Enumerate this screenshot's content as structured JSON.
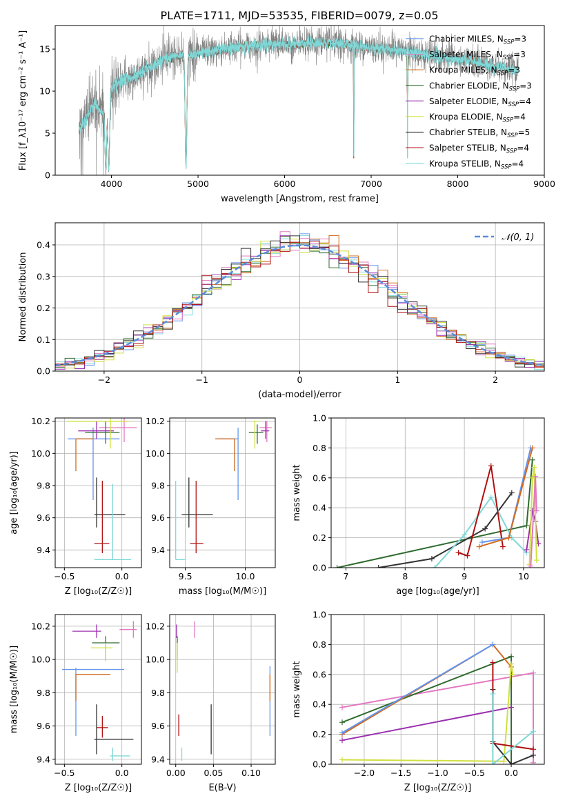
{
  "title": "PLATE=1711, MJD=53535, FIBERID=0079, z=0.05",
  "legend_models": [
    {
      "name": "Chabrier MILES",
      "nssp": "3",
      "color": "#6495ed"
    },
    {
      "name": "Salpeter MILES",
      "nssp": "3",
      "color": "#e377c2"
    },
    {
      "name": "Kroupa MILES",
      "nssp": "3",
      "color": "#d2691e"
    },
    {
      "name": "Chabrier ELODIE",
      "nssp": "3",
      "color": "#2e6b2e"
    },
    {
      "name": "Salpeter ELODIE",
      "nssp": "4",
      "color": "#9b30b0"
    },
    {
      "name": "Kroupa ELODIE",
      "nssp": "4",
      "color": "#d0e040"
    },
    {
      "name": "Chabrier STELIB",
      "nssp": "5",
      "color": "#333333"
    },
    {
      "name": "Salpeter STELIB",
      "nssp": "4",
      "color": "#b01010"
    },
    {
      "name": "Kroupa STELIB",
      "nssp": "4",
      "color": "#7fd8d8"
    }
  ],
  "chart_data": [
    {
      "type": "line",
      "panel": "spectrum",
      "xlabel": "wavelength [Angstrom, rest frame]",
      "ylabel": "Flux [f_λ10⁻¹⁷ erg cm⁻² s⁻¹ A⁻¹]",
      "xlim": [
        3350,
        9000
      ],
      "ylim": [
        0,
        17.8
      ],
      "xticks": [
        4000,
        5000,
        6000,
        7000,
        8000,
        9000
      ],
      "yticks": [
        0,
        5,
        10,
        15
      ],
      "data_color": "#808080",
      "model_color": "#7fd8d8",
      "x_start": 3625,
      "x_end": 8700,
      "continuum": [
        [
          3625,
          5.5
        ],
        [
          3700,
          6.5
        ],
        [
          3800,
          8.5
        ],
        [
          3900,
          7.5
        ],
        [
          3950,
          9.5
        ],
        [
          4000,
          10.5
        ],
        [
          4100,
          11.2
        ],
        [
          4200,
          11.5
        ],
        [
          4300,
          11.8
        ],
        [
          4400,
          12.6
        ],
        [
          4500,
          13.2
        ],
        [
          4600,
          13.8
        ],
        [
          4700,
          14.0
        ],
        [
          4800,
          14.3
        ],
        [
          4900,
          14.4
        ],
        [
          5000,
          14.5
        ],
        [
          5200,
          14.8
        ],
        [
          5400,
          15.2
        ],
        [
          5600,
          15.4
        ],
        [
          5800,
          15.6
        ],
        [
          6000,
          15.5
        ],
        [
          6200,
          15.6
        ],
        [
          6400,
          15.8
        ],
        [
          6600,
          15.6
        ],
        [
          6800,
          15.4
        ],
        [
          7000,
          15.2
        ],
        [
          7200,
          15.0
        ],
        [
          7400,
          14.8
        ],
        [
          7600,
          14.4
        ],
        [
          7800,
          14.0
        ],
        [
          8000,
          13.8
        ],
        [
          8200,
          13.5
        ],
        [
          8400,
          13.0
        ],
        [
          8600,
          12.6
        ],
        [
          8700,
          12.4
        ]
      ],
      "dips": [
        3934,
        3969,
        4861,
        6800,
        7420
      ]
    },
    {
      "type": "bar",
      "panel": "residual-histogram",
      "xlabel": "(data-model)/error",
      "ylabel": "Normed distribution",
      "xlim": [
        -2.5,
        2.5
      ],
      "ylim": [
        0,
        0.47
      ],
      "xticks": [
        -2,
        -1,
        0,
        1,
        2
      ],
      "yticks": [
        0,
        0.1,
        0.2,
        0.3,
        0.4
      ],
      "bin_width": 0.1,
      "reference_label": "𝒩(0, 1)",
      "reference_color": "#5b8bd9"
    },
    {
      "type": "scatter",
      "panel": "age-vs-Z",
      "xlabel": "Z [log₁₀(Z/Z☉)]",
      "ylabel": "age  [log₁₀(age/yr)]",
      "xlim": [
        -0.58,
        0.17
      ],
      "ylim": [
        9.29,
        10.22
      ],
      "xticks": [
        -0.5,
        0.0
      ],
      "xticklabels": [
        "−0.5",
        "0.0"
      ],
      "yticks": [
        9.4,
        9.6,
        9.8,
        10.0,
        10.2
      ],
      "points": [
        {
          "model": 0,
          "x": -0.25,
          "y": 10.09,
          "xlo": -0.47,
          "xhi": -0.02,
          "ylo": 9.71,
          "yhi": 10.16
        },
        {
          "model": 1,
          "x": 0.02,
          "y": 10.16,
          "xlo": -0.2,
          "xhi": 0.13,
          "ylo": 10.07,
          "yhi": 10.22
        },
        {
          "model": 2,
          "x": -0.4,
          "y": 10.09,
          "xlo": -0.4,
          "xhi": -0.25,
          "ylo": 9.89,
          "yhi": 10.09
        },
        {
          "model": 3,
          "x": -0.14,
          "y": 10.13,
          "xlo": -0.32,
          "xhi": -0.02,
          "ylo": 10.06,
          "yhi": 10.2
        },
        {
          "model": 4,
          "x": -0.22,
          "y": 10.14,
          "xlo": -0.38,
          "xhi": -0.07,
          "ylo": 10.09,
          "yhi": 10.2
        },
        {
          "model": 5,
          "x": -0.1,
          "y": 10.2,
          "xlo": -0.48,
          "xhi": 0.06,
          "ylo": 10.03,
          "yhi": 10.22
        },
        {
          "model": 6,
          "x": -0.22,
          "y": 9.62,
          "xlo": -0.24,
          "xhi": 0.03,
          "ylo": 9.54,
          "yhi": 9.85
        },
        {
          "model": 7,
          "x": -0.17,
          "y": 9.44,
          "xlo": -0.24,
          "xhi": -0.11,
          "ylo": 9.38,
          "yhi": 9.83
        },
        {
          "model": 8,
          "x": -0.08,
          "y": 9.34,
          "xlo": -0.24,
          "xhi": 0.08,
          "ylo": 9.34,
          "yhi": 9.81
        }
      ]
    },
    {
      "type": "scatter",
      "panel": "age-vs-mass",
      "xlabel": "mass [log₁₀(M/M☉)]",
      "ylabel": "",
      "xlim": [
        9.37,
        10.25
      ],
      "ylim": [
        9.29,
        10.22
      ],
      "xticks": [
        9.5,
        10.0
      ],
      "xticklabels": [
        "9.5",
        "10.0"
      ],
      "yticks": [
        9.4,
        9.6,
        9.8,
        10.0,
        10.2
      ],
      "points": [
        {
          "model": 0,
          "x": 9.94,
          "y": 10.09,
          "xlo": 9.78,
          "xhi": 9.94,
          "ylo": 9.71,
          "yhi": 10.16
        },
        {
          "model": 1,
          "x": 10.18,
          "y": 10.16,
          "xlo": 10.12,
          "xhi": 10.22,
          "ylo": 10.07,
          "yhi": 10.2
        },
        {
          "model": 2,
          "x": 9.91,
          "y": 10.09,
          "xlo": 9.75,
          "xhi": 9.91,
          "ylo": 9.89,
          "yhi": 10.09
        },
        {
          "model": 3,
          "x": 10.1,
          "y": 10.13,
          "xlo": 10.03,
          "xhi": 10.15,
          "ylo": 10.06,
          "yhi": 10.18
        },
        {
          "model": 4,
          "x": 10.17,
          "y": 10.14,
          "xlo": 10.13,
          "xhi": 10.2,
          "ylo": 10.09,
          "yhi": 10.2
        },
        {
          "model": 5,
          "x": 10.08,
          "y": 10.2,
          "xlo": 10.06,
          "xhi": 10.12,
          "ylo": 10.03,
          "yhi": 10.2
        },
        {
          "model": 6,
          "x": 9.53,
          "y": 9.62,
          "xlo": 9.47,
          "xhi": 9.73,
          "ylo": 9.54,
          "yhi": 9.85
        },
        {
          "model": 7,
          "x": 9.59,
          "y": 9.44,
          "xlo": 9.54,
          "xhi": 9.65,
          "ylo": 9.38,
          "yhi": 9.83
        },
        {
          "model": 8,
          "x": 9.42,
          "y": 9.34,
          "xlo": 9.42,
          "xhi": 9.5,
          "ylo": 9.34,
          "yhi": 9.83
        }
      ]
    },
    {
      "type": "line",
      "panel": "mass-weight-vs-age",
      "xlabel": "age  [log₁₀(age/yr)]",
      "ylabel": "mass weight",
      "xlim": [
        6.75,
        10.35
      ],
      "ylim": [
        0,
        1.0
      ],
      "xticks": [
        7,
        8,
        9,
        10
      ],
      "yticks": [
        0,
        0.2,
        0.4,
        0.6,
        0.8,
        1.0
      ],
      "series": [
        {
          "model": 3,
          "x": [
            6.85,
            10.05,
            10.15
          ],
          "y": [
            0.0,
            0.28,
            0.72
          ]
        },
        {
          "model": 6,
          "x": [
            7.55,
            8.45,
            9.35,
            9.8
          ],
          "y": [
            0.0,
            0.06,
            0.26,
            0.5
          ]
        },
        {
          "model": 8,
          "x": [
            8.5,
            9.0,
            9.45,
            9.8,
            10.05
          ],
          "y": [
            0.0,
            0.22,
            0.47,
            0.2,
            0.1
          ]
        },
        {
          "model": 7,
          "x": [
            8.9,
            9.05,
            9.45,
            9.65
          ],
          "y": [
            0.1,
            0.08,
            0.68,
            0.14
          ]
        },
        {
          "model": 4,
          "x": [
            10.05,
            10.15,
            10.2,
            10.25
          ],
          "y": [
            0.12,
            0.38,
            0.31,
            0.16
          ]
        },
        {
          "model": 5,
          "x": [
            10.1,
            10.15,
            10.18,
            10.22
          ],
          "y": [
            0.02,
            0.6,
            0.67,
            0.05
          ]
        },
        {
          "model": 1,
          "x": [
            10.12,
            10.2,
            10.22
          ],
          "y": [
            0.01,
            0.61,
            0.38
          ]
        },
        {
          "model": 0,
          "x": [
            9.3,
            9.75,
            10.12
          ],
          "y": [
            0.17,
            0.2,
            0.8
          ]
        },
        {
          "model": 2,
          "x": [
            9.25,
            9.75,
            10.15
          ],
          "y": [
            0.14,
            0.2,
            0.8
          ]
        }
      ]
    },
    {
      "type": "scatter",
      "panel": "mass-vs-Z",
      "xlabel": "Z [log₁₀(Z/Z☉)]",
      "ylabel": "mass [log₁₀(M/M☉)]",
      "xlim": [
        -0.58,
        0.17
      ],
      "ylim": [
        9.37,
        10.27
      ],
      "xticks": [
        -0.5,
        0.0
      ],
      "xticklabels": [
        "−0.5",
        "0.0"
      ],
      "yticks": [
        9.4,
        9.6,
        9.8,
        10.0,
        10.2
      ],
      "points": [
        {
          "model": 0,
          "x": -0.4,
          "y": 9.94,
          "xlo": -0.52,
          "xhi": 0.02,
          "ylo": 9.54,
          "yhi": 9.95
        },
        {
          "model": 1,
          "x": 0.1,
          "y": 10.18,
          "xlo": -0.02,
          "xhi": 0.13,
          "ylo": 10.13,
          "yhi": 10.23
        },
        {
          "model": 2,
          "x": -0.4,
          "y": 9.91,
          "xlo": -0.4,
          "xhi": -0.1,
          "ylo": 9.75,
          "yhi": 9.91
        },
        {
          "model": 3,
          "x": -0.14,
          "y": 10.1,
          "xlo": -0.26,
          "xhi": -0.02,
          "ylo": 9.99,
          "yhi": 10.14
        },
        {
          "model": 4,
          "x": -0.22,
          "y": 10.17,
          "xlo": -0.43,
          "xhi": -0.18,
          "ylo": 10.13,
          "yhi": 10.21
        },
        {
          "model": 5,
          "x": -0.14,
          "y": 10.07,
          "xlo": -0.27,
          "xhi": -0.08,
          "ylo": 9.99,
          "yhi": 10.1
        },
        {
          "model": 6,
          "x": -0.22,
          "y": 9.52,
          "xlo": -0.24,
          "xhi": 0.1,
          "ylo": 9.43,
          "yhi": 9.73
        },
        {
          "model": 7,
          "x": -0.17,
          "y": 9.59,
          "xlo": -0.22,
          "xhi": -0.12,
          "ylo": 9.53,
          "yhi": 9.66
        },
        {
          "model": 8,
          "x": -0.08,
          "y": 9.42,
          "xlo": -0.1,
          "xhi": 0.07,
          "ylo": 9.39,
          "yhi": 9.47
        }
      ]
    },
    {
      "type": "scatter",
      "panel": "mass-vs-EBV",
      "xlabel": "E(B-V)",
      "ylabel": "",
      "xlim": [
        -0.008,
        0.132
      ],
      "ylim": [
        9.37,
        10.27
      ],
      "xticks": [
        0.0,
        0.05,
        0.1
      ],
      "xticklabels": [
        "0.00",
        "0.05",
        "0.10"
      ],
      "yticks": [
        9.4,
        9.6,
        9.8,
        10.0,
        10.2
      ],
      "points": [
        {
          "model": 0,
          "x": 0.125,
          "y": 9.94,
          "ylo": 9.54,
          "yhi": 9.96
        },
        {
          "model": 1,
          "x": 0.025,
          "y": 10.18,
          "ylo": 10.13,
          "yhi": 10.23
        },
        {
          "model": 2,
          "x": 0.125,
          "y": 9.91,
          "ylo": 9.75,
          "yhi": 9.91
        },
        {
          "model": 3,
          "x": 0.002,
          "y": 10.1,
          "ylo": 10.0,
          "yhi": 10.14
        },
        {
          "model": 4,
          "x": 0.001,
          "y": 10.17,
          "ylo": 10.13,
          "yhi": 10.21
        },
        {
          "model": 5,
          "x": 0.002,
          "y": 10.07,
          "ylo": 9.92,
          "yhi": 10.1
        },
        {
          "model": 6,
          "x": 0.047,
          "y": 9.52,
          "ylo": 9.43,
          "yhi": 9.73
        },
        {
          "model": 7,
          "x": 0.004,
          "y": 9.59,
          "ylo": 9.54,
          "yhi": 9.67
        },
        {
          "model": 8,
          "x": 0.008,
          "y": 9.42,
          "ylo": 9.39,
          "yhi": 9.47
        }
      ]
    },
    {
      "type": "line",
      "panel": "mass-weight-vs-Z",
      "xlabel": "Z [log₁₀(Z/Z☉)]",
      "ylabel": "mass weight",
      "xlim": [
        -2.45,
        0.45
      ],
      "ylim": [
        0,
        1.0
      ],
      "xticks": [
        -2.0,
        -1.5,
        -1.0,
        -0.5,
        0.0
      ],
      "xticklabels": [
        "−2.0",
        "−1.5",
        "−1.0",
        "−0.5",
        "0.0"
      ],
      "yticks": [
        0,
        0.2,
        0.4,
        0.6,
        0.8,
        1.0
      ],
      "series": [
        {
          "model": 1,
          "x": [
            -2.3,
            0.3,
            0.3
          ],
          "y": [
            0.38,
            0.61,
            0.01
          ]
        },
        {
          "model": 3,
          "x": [
            -2.3,
            0.0,
            0.0
          ],
          "y": [
            0.28,
            0.72,
            0.0
          ]
        },
        {
          "model": 4,
          "x": [
            -2.3,
            0.0
          ],
          "y": [
            0.16,
            0.38
          ]
        },
        {
          "model": 2,
          "x": [
            -2.3,
            -0.25,
            0.0
          ],
          "y": [
            0.2,
            0.8,
            0.65
          ]
        },
        {
          "model": 0,
          "x": [
            -2.3,
            -0.25
          ],
          "y": [
            0.21,
            0.8
          ]
        },
        {
          "model": 5,
          "x": [
            -2.3,
            -0.1,
            0.0,
            0.02
          ],
          "y": [
            0.03,
            0.02,
            0.67,
            0.6
          ]
        },
        {
          "model": 6,
          "x": [
            -0.25,
            -0.25,
            0.0,
            0.3
          ],
          "y": [
            0.5,
            0.15,
            0.0,
            0.06
          ]
        },
        {
          "model": 7,
          "x": [
            -0.25,
            -0.25,
            0.3
          ],
          "y": [
            0.68,
            0.14,
            0.1
          ]
        },
        {
          "model": 8,
          "x": [
            -0.25,
            -0.25,
            0.3
          ],
          "y": [
            0.47,
            0.0,
            0.22
          ]
        }
      ]
    }
  ]
}
